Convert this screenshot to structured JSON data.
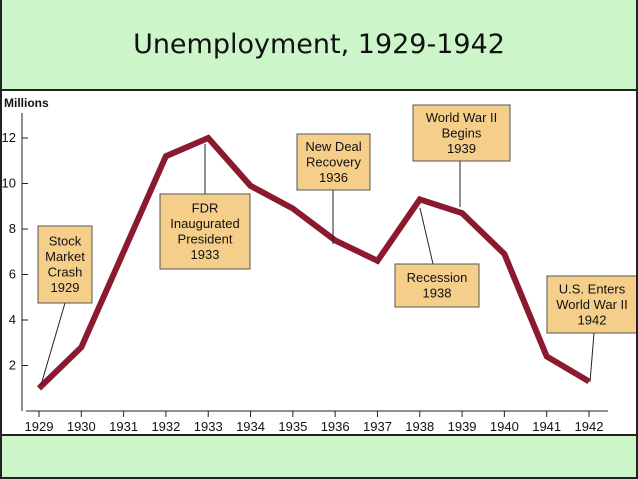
{
  "slide": {
    "title": "Unemployment, 1929-1942"
  },
  "colors": {
    "background": "#ccf6c9",
    "line": "#8b1a2e",
    "annotation_fill": "#f5cf8a",
    "annotation_border": "#555555"
  },
  "chart_data": {
    "type": "line",
    "title": "",
    "xlabel": "",
    "ylabel": "Millions",
    "x": [
      1929,
      1930,
      1931,
      1932,
      1933,
      1934,
      1935,
      1936,
      1937,
      1938,
      1939,
      1940,
      1941,
      1942
    ],
    "series": [
      {
        "values": [
          1.0,
          2.8,
          7.0,
          11.2,
          12.0,
          9.9,
          8.9,
          7.5,
          6.6,
          9.3,
          8.7,
          6.9,
          2.4,
          1.3
        ]
      }
    ],
    "ylim": [
      0,
      12.8
    ],
    "yticks": [
      2,
      4,
      6,
      8,
      10,
      12
    ],
    "xlim": [
      1929,
      1942
    ],
    "grid": false,
    "annotations": [
      {
        "lines": [
          "Stock",
          "Market",
          "Crash",
          "1929"
        ],
        "target_x": 1929
      },
      {
        "lines": [
          "FDR",
          "Inaugurated",
          "President",
          "1933"
        ],
        "target_x": 1933
      },
      {
        "lines": [
          "New Deal",
          "Recovery",
          "1936"
        ],
        "target_x": 1936
      },
      {
        "lines": [
          "World War II",
          "Begins",
          "1939"
        ],
        "target_x": 1939
      },
      {
        "lines": [
          "Recession",
          "1938"
        ],
        "target_x": 1938
      },
      {
        "lines": [
          "U.S. Enters",
          "World War II",
          "1942"
        ],
        "target_x": 1942
      }
    ]
  }
}
